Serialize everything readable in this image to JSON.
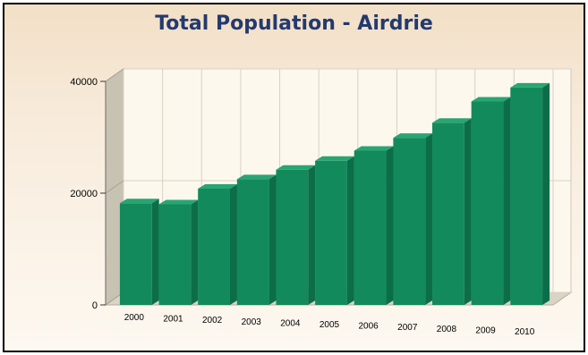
{
  "chart_data": {
    "type": "bar",
    "title": "Total Population - Airdrie",
    "xlabel": "",
    "ylabel": "",
    "categories": [
      "2000",
      "2001",
      "2002",
      "2003",
      "2004",
      "2005",
      "2006",
      "2007",
      "2008",
      "2009",
      "2010"
    ],
    "values": [
      18200,
      18000,
      20800,
      22500,
      24200,
      25800,
      27600,
      29900,
      32600,
      36400,
      38900
    ],
    "ylim": [
      0,
      40000
    ],
    "yticks": [
      "0",
      "20000",
      "40000"
    ],
    "grid": true,
    "legend": "none",
    "style": "3d",
    "colors": {
      "bar_front": "#138a5c",
      "bar_side": "#0c6e48",
      "bar_top": "#28a572",
      "title": "#233a6e",
      "back_wall": "#fcf8ee",
      "side_wall": "#c8c2b3",
      "floor": "#d9d4c6",
      "gridline": "#d9d2c2"
    }
  }
}
